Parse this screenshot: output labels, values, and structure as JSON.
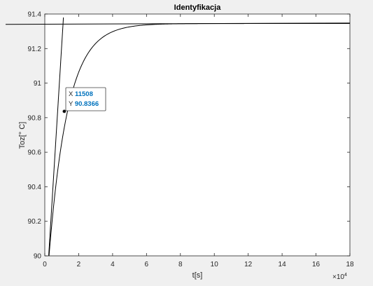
{
  "chart_data": {
    "type": "line",
    "title": "Identyfikacja",
    "xlabel": "t[s]",
    "ylabel": "Toz[° C]",
    "x_exponent_label": "×10",
    "x_exponent_power": "4",
    "xlim": [
      0,
      18
    ],
    "ylim": [
      90,
      91.4
    ],
    "x_ticks": [
      "0",
      "2",
      "4",
      "6",
      "8",
      "10",
      "12",
      "14",
      "16",
      "18"
    ],
    "y_ticks": [
      "90",
      "90.2",
      "90.4",
      "90.6",
      "90.8",
      "91",
      "91.2",
      "91.4"
    ],
    "x_tick_values": [
      0,
      2,
      4,
      6,
      8,
      10,
      12,
      14,
      16,
      18
    ],
    "y_tick_values": [
      90,
      90.2,
      90.4,
      90.6,
      90.8,
      91,
      91.2,
      91.4
    ],
    "grid": false,
    "series": [
      {
        "name": "step response",
        "model": "first-order",
        "start_x": 0.25,
        "initial_value": 90,
        "final_value": 91.345,
        "time_constant": 1.12
      },
      {
        "name": "tangent line",
        "points": [
          [
            0.23,
            90
          ],
          [
            1.1,
            91.38
          ]
        ]
      },
      {
        "name": "steady-state line",
        "points": [
          [
            0,
            91.34
          ],
          [
            18,
            91.348
          ]
        ]
      }
    ],
    "datatip": {
      "x_label": "X",
      "x_value": "11508",
      "y_label": "Y",
      "y_value": "90.8366",
      "point_x": 1.1508,
      "point_y": 90.8366
    }
  }
}
